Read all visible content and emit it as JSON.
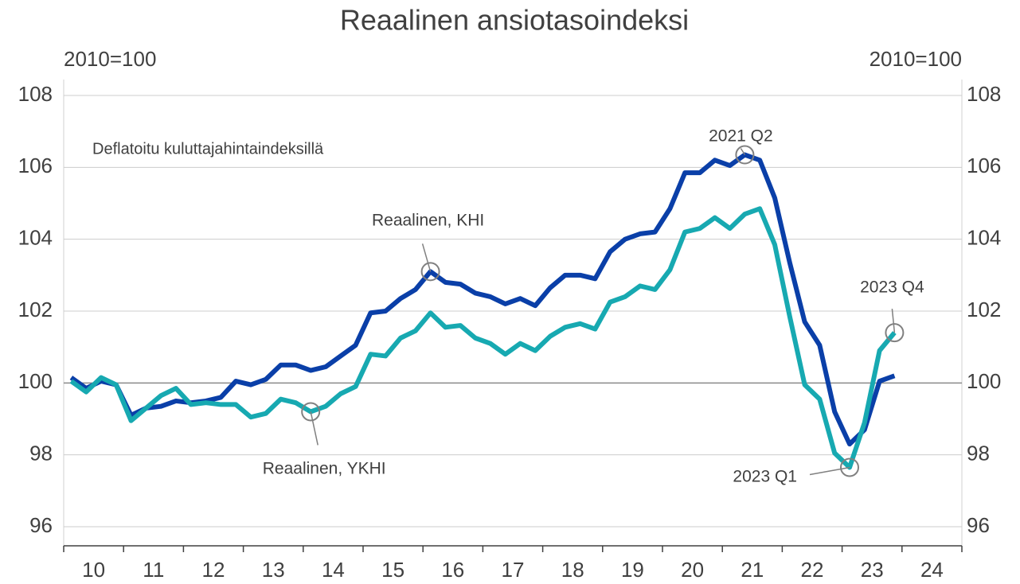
{
  "chart_data": {
    "type": "line",
    "title": "Reaalinen ansiotasoindeksi",
    "subtitle": "Deflatoitu kuluttajahintaindeksillä",
    "ylabel": "2010=100",
    "y2label": "2010=100",
    "x": [
      2010.125,
      2010.375,
      2010.625,
      2010.875,
      2011.125,
      2011.375,
      2011.625,
      2011.875,
      2012.125,
      2012.375,
      2012.625,
      2012.875,
      2013.125,
      2013.375,
      2013.625,
      2013.875,
      2014.125,
      2014.375,
      2014.625,
      2014.875,
      2015.125,
      2015.375,
      2015.625,
      2015.875,
      2016.125,
      2016.375,
      2016.625,
      2016.875,
      2017.125,
      2017.375,
      2017.625,
      2017.875,
      2018.125,
      2018.375,
      2018.625,
      2018.875,
      2019.125,
      2019.375,
      2019.625,
      2019.875,
      2020.125,
      2020.375,
      2020.625,
      2020.875,
      2021.125,
      2021.375,
      2021.625,
      2021.875,
      2022.125,
      2022.375,
      2022.625,
      2022.875,
      2023.125,
      2023.375,
      2023.625,
      2023.875
    ],
    "xlim": [
      2010,
      2025
    ],
    "xticks": [
      2010,
      2011,
      2012,
      2013,
      2014,
      2015,
      2016,
      2017,
      2018,
      2019,
      2020,
      2021,
      2022,
      2023,
      2024,
      2025
    ],
    "x_labels": [
      "10",
      "11",
      "12",
      "13",
      "14",
      "15",
      "16",
      "17",
      "18",
      "19",
      "20",
      "21",
      "22",
      "23",
      "24"
    ],
    "series": [
      {
        "name": "Reaalinen, KHI",
        "color": "#0a3fa8",
        "values": [
          100.15,
          99.85,
          100.05,
          99.95,
          99.1,
          99.3,
          99.35,
          99.5,
          99.45,
          99.5,
          99.6,
          100.05,
          99.95,
          100.1,
          100.5,
          100.5,
          100.35,
          100.45,
          100.75,
          101.05,
          101.95,
          102.0,
          102.35,
          102.6,
          103.1,
          102.8,
          102.75,
          102.5,
          102.4,
          102.2,
          102.35,
          102.15,
          102.65,
          103.0,
          103.0,
          102.9,
          103.65,
          104.0,
          104.15,
          104.2,
          104.85,
          105.85,
          105.85,
          106.2,
          106.05,
          106.35,
          106.2,
          105.15,
          103.35,
          101.7,
          101.05,
          99.2,
          98.3,
          98.7,
          100.05,
          100.2
        ]
      },
      {
        "name": "Reaalinen, YKHI",
        "color": "#17a9b1",
        "values": [
          100.05,
          99.75,
          100.15,
          99.95,
          98.95,
          99.3,
          99.65,
          99.85,
          99.4,
          99.45,
          99.4,
          99.4,
          99.05,
          99.15,
          99.55,
          99.45,
          99.2,
          99.35,
          99.7,
          99.9,
          100.8,
          100.75,
          101.25,
          101.45,
          101.95,
          101.55,
          101.6,
          101.25,
          101.1,
          100.8,
          101.1,
          100.9,
          101.3,
          101.55,
          101.65,
          101.5,
          102.25,
          102.4,
          102.7,
          102.6,
          103.15,
          104.2,
          104.3,
          104.6,
          104.3,
          104.7,
          104.85,
          103.85,
          101.85,
          99.95,
          99.55,
          98.05,
          97.65,
          98.9,
          100.9,
          101.4
        ]
      }
    ],
    "ylim": [
      96,
      108
    ],
    "yticks": [
      96,
      98,
      100,
      102,
      104,
      106,
      108
    ],
    "y2lim": [
      96,
      108
    ],
    "y2ticks": [
      96,
      98,
      100,
      102,
      104,
      106,
      108
    ],
    "hline": 100,
    "grid": true,
    "annotations": [
      "2021 Q2",
      "2023 Q1",
      "2023 Q4"
    ]
  }
}
